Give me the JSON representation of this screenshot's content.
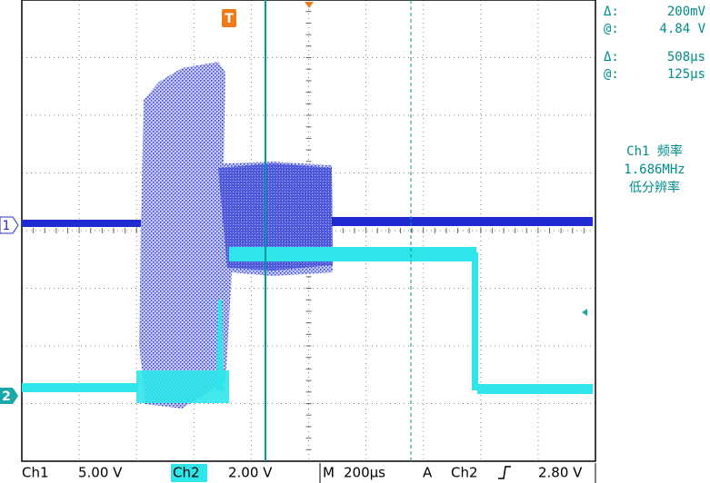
{
  "markers": {
    "trigger": "T",
    "ch1": "1",
    "ch2": "2"
  },
  "readouts": [
    {
      "label": "Δ:",
      "value": "200mV"
    },
    {
      "label": "@:",
      "value": "4.84 V"
    },
    {
      "label": "Δ:",
      "value": "508µs"
    },
    {
      "label": "@:",
      "value": "125µs"
    }
  ],
  "measurement": {
    "title": "Ch1 频率",
    "value": "1.686MHz",
    "note": "低分辨率"
  },
  "status_bar": {
    "ch1_label": "Ch1",
    "ch1_scale": "5.00 V",
    "ch2_label": "Ch2",
    "ch2_scale": "2.00 V",
    "time_label": "M",
    "time_scale": "200µs",
    "trigger_label": "A",
    "trigger_source": "Ch2",
    "trigger_level": "2.80 V"
  }
}
